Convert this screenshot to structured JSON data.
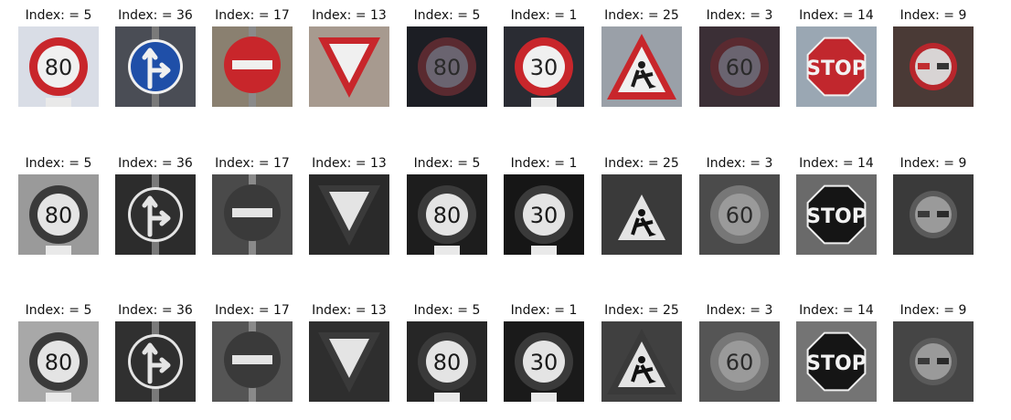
{
  "rows": [
    {
      "mode": "color",
      "items": [
        {
          "title": "Index: = 5",
          "sign": "speed",
          "text": "80",
          "bg": "#d9dde6"
        },
        {
          "title": "Index: = 36",
          "sign": "blue-arrows",
          "bg": "#4a4d55"
        },
        {
          "title": "Index: = 17",
          "sign": "no-entry",
          "bg": "#8a8070"
        },
        {
          "title": "Index: = 13",
          "sign": "yield",
          "bg": "#a79a8f"
        },
        {
          "title": "Index: = 5",
          "sign": "speed-dark",
          "text": "80",
          "bg": "#1c1e24"
        },
        {
          "title": "Index: = 1",
          "sign": "speed",
          "text": "30",
          "bg": "#2a2c33"
        },
        {
          "title": "Index: = 25",
          "sign": "roadwork",
          "bg": "#9aa0a8"
        },
        {
          "title": "Index: = 3",
          "sign": "speed-dark",
          "text": "60",
          "bg": "#3b2f36"
        },
        {
          "title": "Index: = 14",
          "sign": "stop",
          "text": "STOP",
          "bg": "#9aa7b3"
        },
        {
          "title": "Index: = 9",
          "sign": "no-overtake",
          "bg": "#4a3a36"
        }
      ]
    },
    {
      "mode": "gray",
      "items": [
        {
          "title": "Index: = 5",
          "sign": "speed",
          "text": "80",
          "bg": "#9a9a9a"
        },
        {
          "title": "Index: = 36",
          "sign": "blue-arrows",
          "bg": "#2c2c2c"
        },
        {
          "title": "Index: = 17",
          "sign": "no-entry",
          "bg": "#4a4a4a"
        },
        {
          "title": "Index: = 13",
          "sign": "yield",
          "bg": "#2a2a2a"
        },
        {
          "title": "Index: = 5",
          "sign": "speed",
          "text": "80",
          "bg": "#1d1d1d"
        },
        {
          "title": "Index: = 1",
          "sign": "speed",
          "text": "30",
          "bg": "#161616"
        },
        {
          "title": "Index: = 25",
          "sign": "roadwork",
          "bg": "#3a3a3a"
        },
        {
          "title": "Index: = 3",
          "sign": "speed-dark",
          "text": "60",
          "bg": "#4b4b4b"
        },
        {
          "title": "Index: = 14",
          "sign": "stop",
          "text": "STOP",
          "bg": "#6a6a6a"
        },
        {
          "title": "Index: = 9",
          "sign": "no-overtake",
          "bg": "#3a3a3a"
        }
      ]
    },
    {
      "mode": "gray",
      "items": [
        {
          "title": "Index: = 5",
          "sign": "speed",
          "text": "80",
          "bg": "#a8a8a8"
        },
        {
          "title": "Index: = 36",
          "sign": "blue-arrows",
          "bg": "#303030"
        },
        {
          "title": "Index: = 17",
          "sign": "no-entry",
          "bg": "#555555"
        },
        {
          "title": "Index: = 13",
          "sign": "yield",
          "bg": "#2e2e2e"
        },
        {
          "title": "Index: = 5",
          "sign": "speed",
          "text": "80",
          "bg": "#262626"
        },
        {
          "title": "Index: = 1",
          "sign": "speed",
          "text": "30",
          "bg": "#1a1a1a"
        },
        {
          "title": "Index: = 25",
          "sign": "roadwork",
          "bg": "#404040"
        },
        {
          "title": "Index: = 3",
          "sign": "speed-dark",
          "text": "60",
          "bg": "#555555"
        },
        {
          "title": "Index: = 14",
          "sign": "stop",
          "text": "STOP",
          "bg": "#747474"
        },
        {
          "title": "Index: = 9",
          "sign": "no-overtake",
          "bg": "#454545"
        }
      ]
    }
  ]
}
